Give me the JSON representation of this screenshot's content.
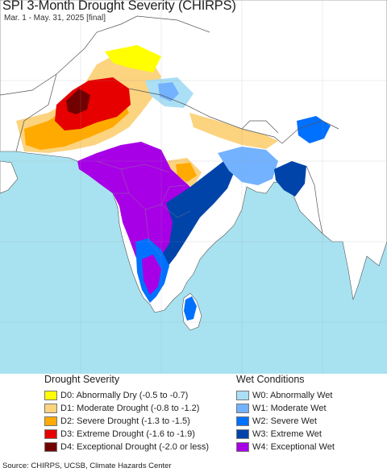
{
  "title": "SPI 3-Month Drought Severity (CHIRPS)",
  "subtitle": "Mar. 1 - May. 31, 2025 [final]",
  "colors": {
    "land": "#ffffff",
    "ocean": "#a8e2f0",
    "border": "#555555"
  },
  "legend": {
    "drought_title": "Drought Severity",
    "wet_title": "Wet Conditions",
    "drought_items": [
      {
        "label": "D0: Abnormally Dry (-0.5 to -0.7)",
        "color": "#ffff00"
      },
      {
        "label": "D1: Moderate Drought (-0.8 to -1.2)",
        "color": "#fcd37f"
      },
      {
        "label": "D2: Severe Drought (-1.3 to -1.5)",
        "color": "#ffaa00"
      },
      {
        "label": "D3: Extreme Drought (-1.6 to -1.9)",
        "color": "#e60000"
      },
      {
        "label": "D4: Exceptional Drought (-2.0 or less)",
        "color": "#730000"
      }
    ],
    "wet_items": [
      {
        "label": "W0: Abnormally Wet",
        "color": "#aadff5"
      },
      {
        "label": "W1: Moderate Wet",
        "color": "#73b2ff"
      },
      {
        "label": "W2: Severe Wet",
        "color": "#0070ff"
      },
      {
        "label": "W3: Extreme Wet",
        "color": "#0044aa"
      },
      {
        "label": "W4: Exceptional Wet",
        "color": "#a800e6"
      }
    ]
  },
  "source": "Source: CHIRPS, UCSB, Climate Hazards Center"
}
